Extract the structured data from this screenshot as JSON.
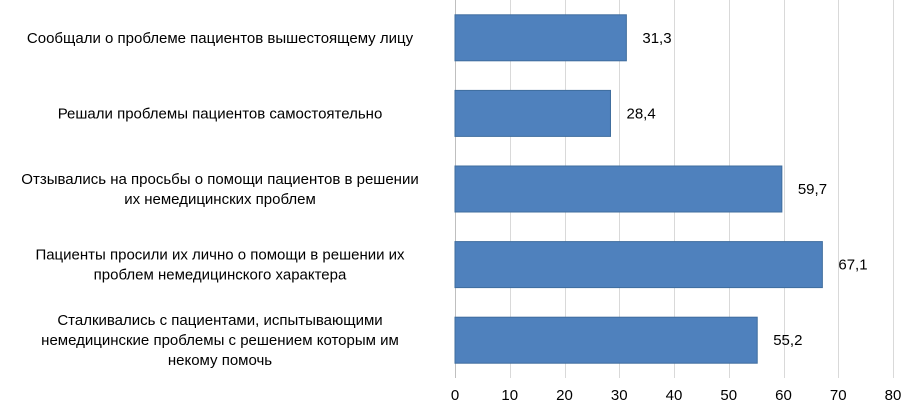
{
  "chart_data": {
    "type": "bar",
    "orientation": "horizontal",
    "categories": [
      [
        "Сообщали о проблеме пациентов вышестоящему лицу"
      ],
      [
        "Решали проблемы пациентов самостоятельно"
      ],
      [
        "Отзывались на просьбы о помощи пациентов в решении",
        "их немедицинских проблем"
      ],
      [
        "Пациенты просили их лично о помощи в решении их",
        "проблем немедицинского характера"
      ],
      [
        "Сталкивались с пациентами, испытывающими",
        "немедицинские проблемы с решением которым им",
        "некому помочь"
      ]
    ],
    "values": [
      31.3,
      28.4,
      59.7,
      67.1,
      55.2
    ],
    "value_labels": [
      "31,3",
      "28,4",
      "59,7",
      "67,1",
      "55,2"
    ],
    "xlim": [
      0,
      80
    ],
    "xticks": [
      "0",
      "10",
      "20",
      "30",
      "40",
      "50",
      "60",
      "70",
      "80"
    ],
    "grid": "vertical",
    "bar_color": "#4f81bd",
    "bar_edge_color": "#3f6d9e",
    "title": "",
    "xlabel": "",
    "ylabel": ""
  }
}
